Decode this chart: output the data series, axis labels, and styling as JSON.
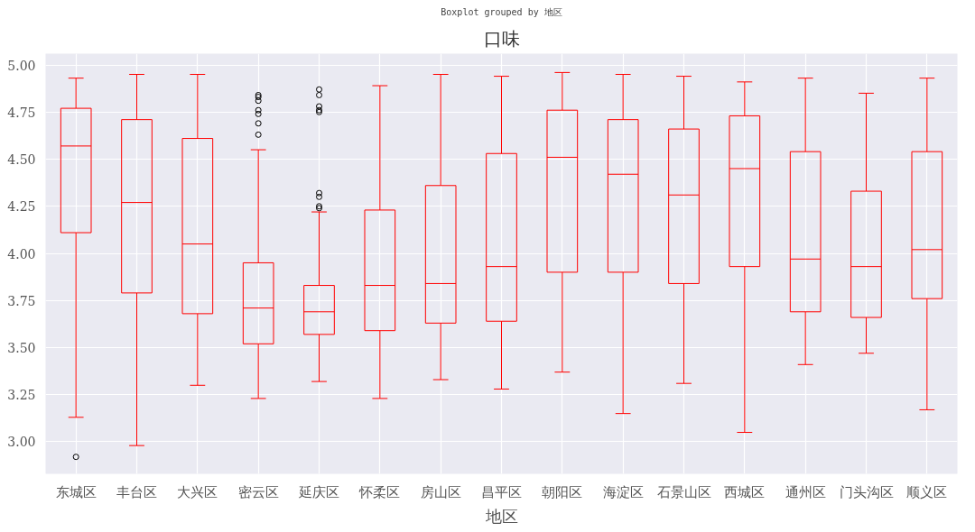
{
  "chart_data": {
    "type": "box",
    "title": "Boxplot grouped by 地区",
    "subtitle": "口味",
    "xlabel": "地区",
    "categories": [
      "东城区",
      "丰台区",
      "大兴区",
      "密云区",
      "延庆区",
      "怀柔区",
      "房山区",
      "昌平区",
      "朝阳区",
      "海淀区",
      "石景山区",
      "西城区",
      "通州区",
      "门头沟区",
      "顺义区"
    ],
    "color": "#ff0000",
    "boxes": [
      {
        "low": 3.13,
        "q1": 4.11,
        "median": 4.57,
        "q3": 4.77,
        "high": 4.93,
        "outliers": [
          2.92
        ]
      },
      {
        "low": 2.98,
        "q1": 3.79,
        "median": 4.27,
        "q3": 4.71,
        "high": 4.95
      },
      {
        "low": 3.3,
        "q1": 3.68,
        "median": 4.05,
        "q3": 4.61,
        "high": 4.95
      },
      {
        "low": 3.23,
        "q1": 3.52,
        "median": 3.71,
        "q3": 3.95,
        "high": 4.55,
        "outliers": [
          4.63,
          4.69,
          4.74,
          4.76,
          4.81,
          4.83,
          4.84
        ]
      },
      {
        "low": 3.32,
        "q1": 3.57,
        "median": 3.69,
        "q3": 3.83,
        "high": 4.22,
        "outliers": [
          4.24,
          4.25,
          4.3,
          4.32,
          4.75,
          4.76,
          4.78,
          4.84,
          4.87
        ]
      },
      {
        "low": 3.23,
        "q1": 3.59,
        "median": 3.83,
        "q3": 4.23,
        "high": 4.89
      },
      {
        "low": 3.33,
        "q1": 3.63,
        "median": 3.84,
        "q3": 4.36,
        "high": 4.95
      },
      {
        "low": 3.28,
        "q1": 3.64,
        "median": 3.93,
        "q3": 4.53,
        "high": 4.94
      },
      {
        "low": 3.37,
        "q1": 3.9,
        "median": 4.51,
        "q3": 4.76,
        "high": 4.96
      },
      {
        "low": 3.15,
        "q1": 3.9,
        "median": 4.42,
        "q3": 4.71,
        "high": 4.95
      },
      {
        "low": 3.31,
        "q1": 3.84,
        "median": 4.31,
        "q3": 4.66,
        "high": 4.94
      },
      {
        "low": 3.05,
        "q1": 3.93,
        "median": 4.45,
        "q3": 4.73,
        "high": 4.91
      },
      {
        "low": 3.41,
        "q1": 3.69,
        "median": 3.97,
        "q3": 4.54,
        "high": 4.93
      },
      {
        "low": 3.47,
        "q1": 3.66,
        "median": 3.93,
        "q3": 4.33,
        "high": 4.85
      },
      {
        "low": 3.17,
        "q1": 3.76,
        "median": 4.02,
        "q3": 4.54,
        "high": 4.93
      }
    ],
    "ylim": [
      2.83,
      5.06
    ],
    "yticks": [
      {
        "value": 3.0,
        "label": "3.00"
      },
      {
        "value": 3.25,
        "label": "3.25"
      },
      {
        "value": 3.5,
        "label": "3.50"
      },
      {
        "value": 3.75,
        "label": "3.75"
      },
      {
        "value": 4.0,
        "label": "4.00"
      },
      {
        "value": 4.25,
        "label": "4.25"
      },
      {
        "value": 4.5,
        "label": "4.50"
      },
      {
        "value": 4.75,
        "label": "4.75"
      },
      {
        "value": 5.0,
        "label": "5.00"
      }
    ],
    "grid": true
  }
}
